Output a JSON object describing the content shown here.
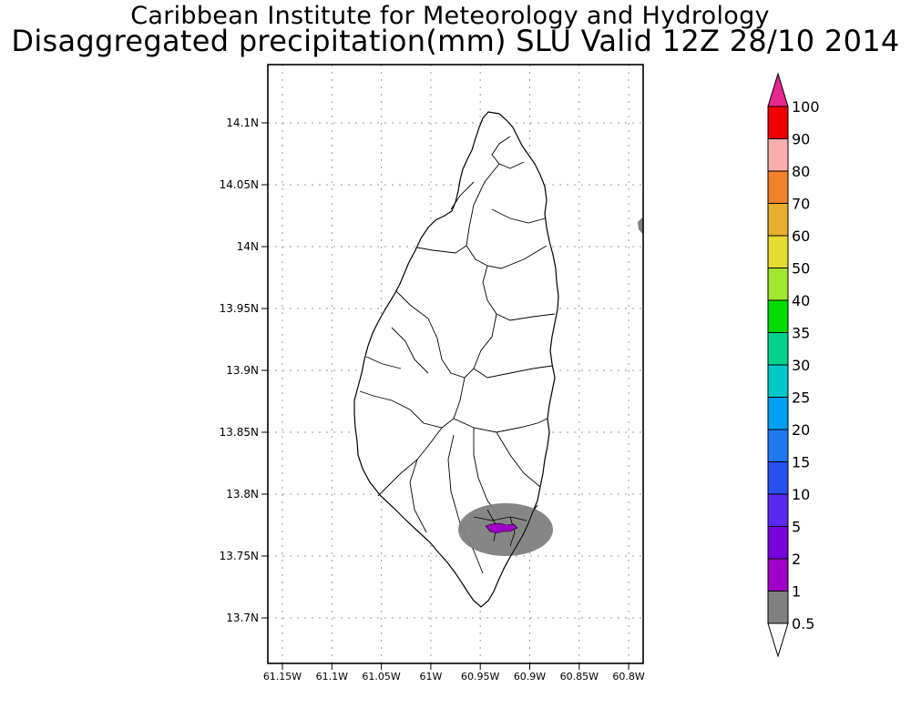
{
  "title": "Caribbean Institute for Meteorology and Hydrology",
  "subtitle": "Disaggregated precipitation(mm) SLU Valid 12Z 28/10 2014",
  "map": {
    "lat_ticks": [
      "14.1N",
      "14.05N",
      "14N",
      "13.95N",
      "13.9N",
      "13.85N",
      "13.8N",
      "13.75N",
      "13.7N"
    ],
    "lon_ticks": [
      "61.15W",
      "61.1W",
      "61.05W",
      "61W",
      "60.95W",
      "60.9W",
      "60.85W",
      "60.8W"
    ],
    "lat_values": [
      14.1,
      14.05,
      14.0,
      13.95,
      13.9,
      13.85,
      13.8,
      13.75,
      13.7
    ],
    "lon_values": [
      -61.15,
      -61.1,
      -61.05,
      -61.0,
      -60.95,
      -60.9,
      -60.85,
      -60.8
    ],
    "gridlines": true
  },
  "colorbar": {
    "levels": [
      {
        "label": "0.5",
        "color": "#808080"
      },
      {
        "label": "1",
        "color": "#a000c8"
      },
      {
        "label": "2",
        "color": "#7800dc"
      },
      {
        "label": "5",
        "color": "#5a28f0"
      },
      {
        "label": "10",
        "color": "#2850f0"
      },
      {
        "label": "15",
        "color": "#1e78f0"
      },
      {
        "label": "20",
        "color": "#00a0f0"
      },
      {
        "label": "25",
        "color": "#00c8c8"
      },
      {
        "label": "30",
        "color": "#00d28c"
      },
      {
        "label": "35",
        "color": "#00dc00"
      },
      {
        "label": "40",
        "color": "#a0e632"
      },
      {
        "label": "50",
        "color": "#e6dc32"
      },
      {
        "label": "60",
        "color": "#e6af2d"
      },
      {
        "label": "70",
        "color": "#f08228"
      },
      {
        "label": "80",
        "color": "#faafaf"
      },
      {
        "label": "90",
        "color": "#f00000"
      },
      {
        "label": "100",
        "color": "#ff3c3c"
      }
    ],
    "over_color": "#e6288c",
    "under_color": "#ffffff"
  },
  "precip_areas": [
    {
      "level": "0.5",
      "color": "#808080"
    },
    {
      "level": "1",
      "color": "#a000c8"
    }
  ]
}
